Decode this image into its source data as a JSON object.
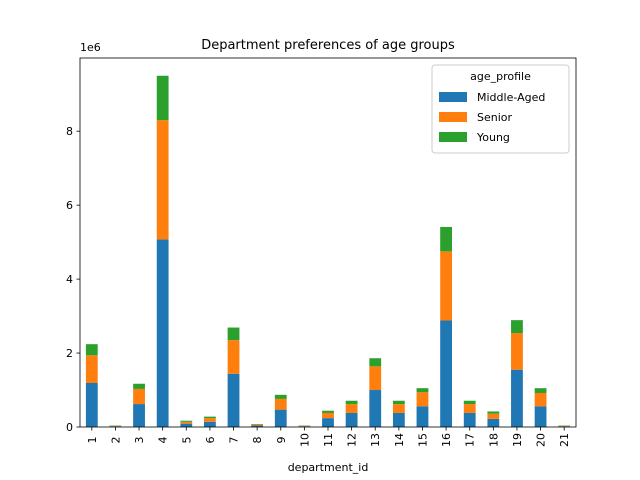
{
  "chart_data": {
    "type": "bar",
    "stacked": true,
    "title": "Department preferences of age groups",
    "xlabel": "department_id",
    "ylabel": "",
    "y_offset_label": "1e6",
    "ylim": [
      0,
      9.98
    ],
    "y_unit_multiplier": 1000000,
    "yticks": [
      0,
      2,
      4,
      6,
      8
    ],
    "categories": [
      "1",
      "2",
      "3",
      "4",
      "5",
      "6",
      "7",
      "8",
      "9",
      "10",
      "11",
      "12",
      "13",
      "14",
      "15",
      "16",
      "17",
      "18",
      "19",
      "20",
      "21"
    ],
    "series": [
      {
        "name": "Middle-Aged",
        "color": "#1f77b4",
        "values": [
          1.19,
          0.02,
          0.62,
          5.07,
          0.09,
          0.14,
          1.44,
          0.04,
          0.47,
          0.02,
          0.24,
          0.38,
          1.0,
          0.38,
          0.56,
          2.88,
          0.38,
          0.22,
          1.55,
          0.56,
          0.02
        ]
      },
      {
        "name": "Senior",
        "color": "#ff7f0e",
        "values": [
          0.75,
          0.01,
          0.41,
          3.23,
          0.05,
          0.1,
          0.91,
          0.03,
          0.29,
          0.01,
          0.14,
          0.24,
          0.64,
          0.24,
          0.38,
          1.87,
          0.24,
          0.14,
          0.99,
          0.36,
          0.01
        ]
      },
      {
        "name": "Young",
        "color": "#2ca02c",
        "values": [
          0.3,
          0.01,
          0.14,
          1.2,
          0.03,
          0.04,
          0.34,
          0.01,
          0.11,
          0.01,
          0.06,
          0.09,
          0.22,
          0.09,
          0.11,
          0.66,
          0.09,
          0.06,
          0.35,
          0.13,
          0.01
        ]
      }
    ],
    "legend": {
      "title": "age_profile",
      "position": "top-right"
    },
    "grid": false
  }
}
